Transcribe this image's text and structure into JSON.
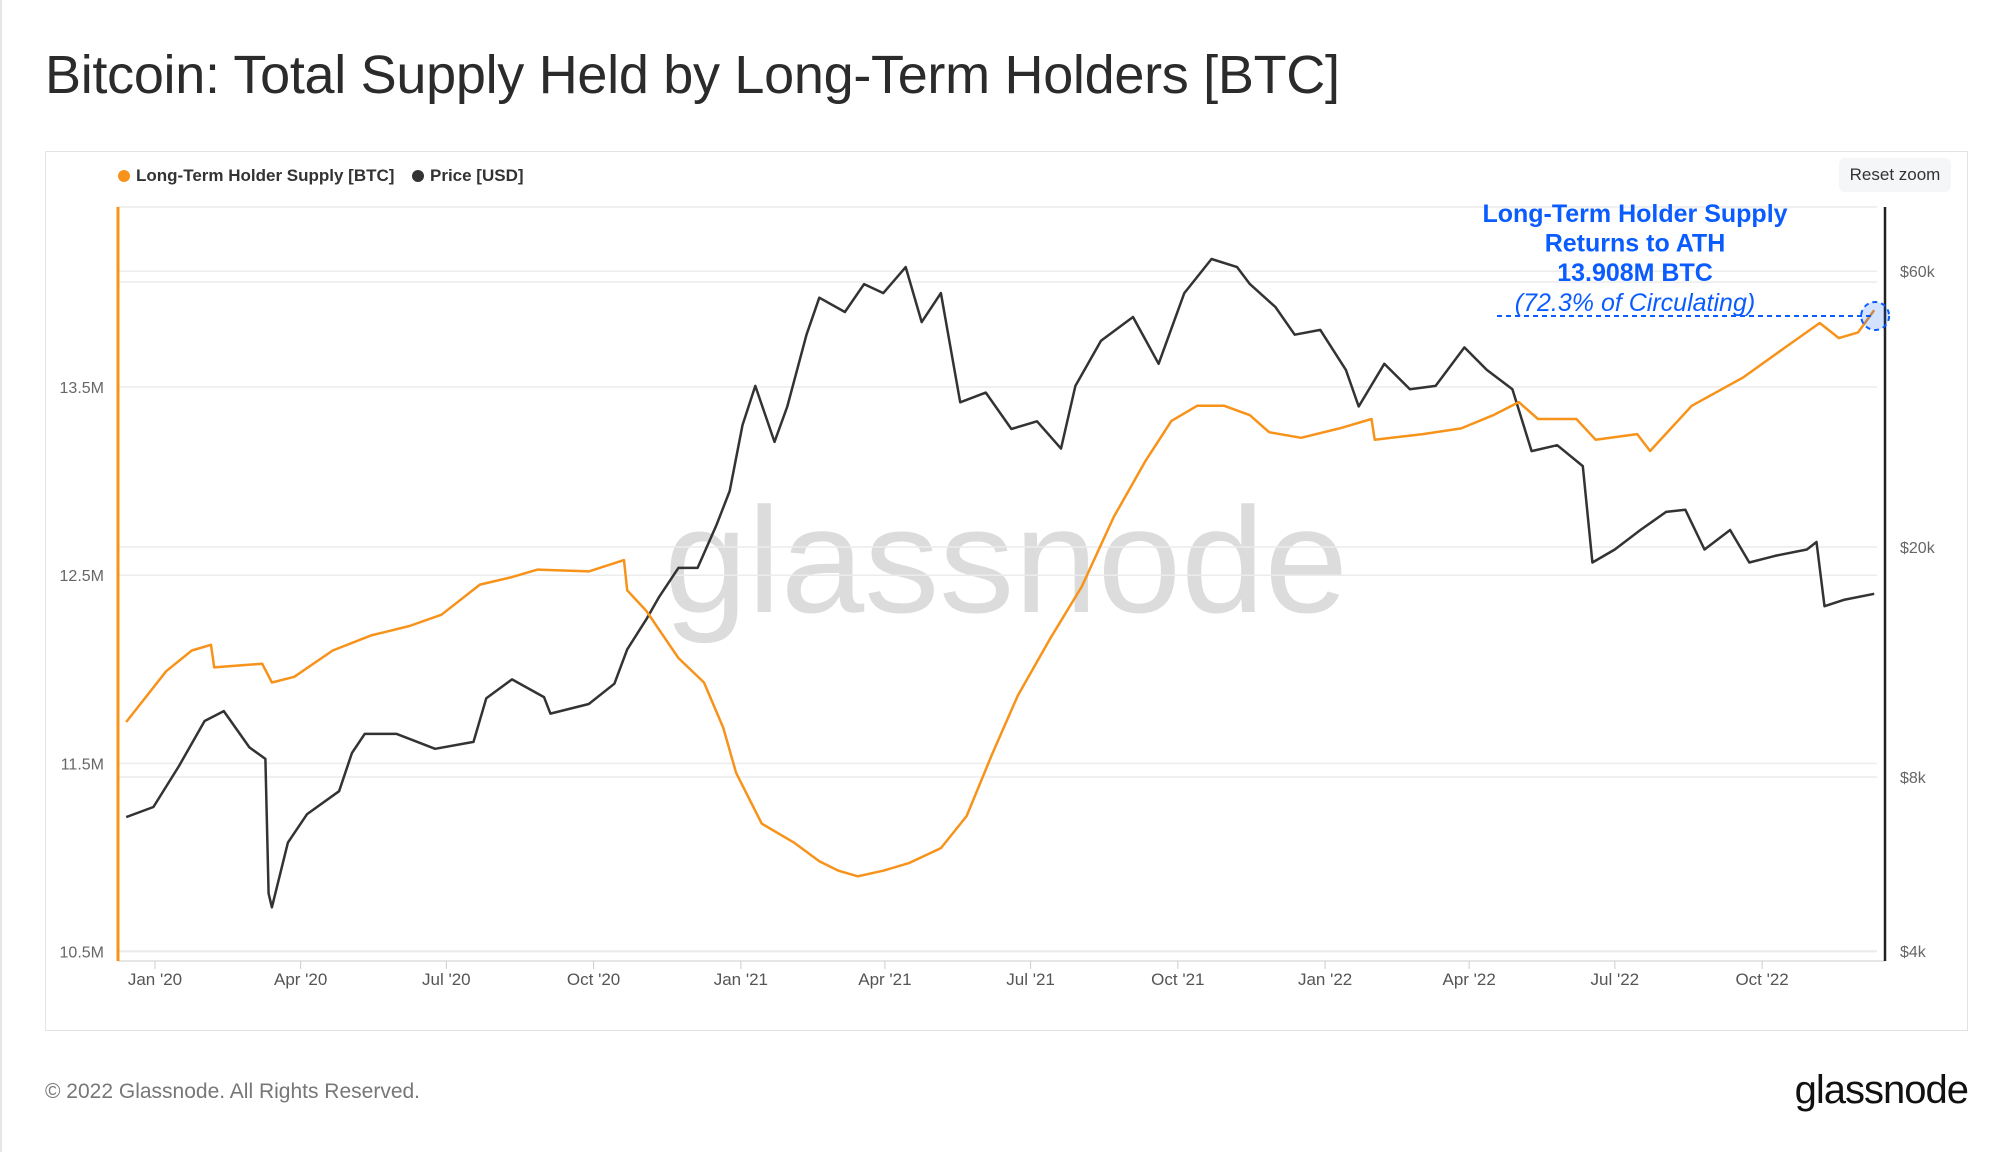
{
  "title": "Bitcoin: Total Supply Held by Long-Term Holders [BTC]",
  "reset_zoom_label": "Reset zoom",
  "footer": {
    "copyright": "© 2022 Glassnode. All Rights Reserved.",
    "logo": "glassnode"
  },
  "watermark": "glassnode",
  "chart_data": {
    "type": "line",
    "title": "Bitcoin: Total Supply Held by Long-Term Holders [BTC]",
    "legend": [
      "Long-Term Holder Supply [BTC]",
      "Price [USD]"
    ],
    "legend_placement": "top-left",
    "grid": true,
    "x_ticks": [
      "Jan '20",
      "Apr '20",
      "Jul '20",
      "Oct '20",
      "Jan '21",
      "Apr '21",
      "Jul '21",
      "Oct '21",
      "Jan '22",
      "Apr '22",
      "Jul '22",
      "Oct '22"
    ],
    "x_tick_dates": [
      "2020-01-01",
      "2020-04-01",
      "2020-07-01",
      "2020-10-01",
      "2021-01-01",
      "2021-04-01",
      "2021-07-01",
      "2021-10-01",
      "2022-01-01",
      "2022-04-01",
      "2022-07-01",
      "2022-10-01"
    ],
    "xlim": [
      "2019-12-10",
      "2022-12-12"
    ],
    "y_left": {
      "ticks": [
        10.5,
        11.5,
        12.5,
        13.5
      ],
      "tick_labels": [
        "10.5M",
        "11.5M",
        "12.5M",
        "13.5M"
      ],
      "unit": "M BTC",
      "range": [
        10.47,
        14.46
      ],
      "scale": "linear"
    },
    "y_right": {
      "ticks": [
        4000,
        8000,
        20000,
        60000
      ],
      "tick_labels": [
        "$4k",
        "$8k",
        "$20k",
        "$60k"
      ],
      "range": [
        3900,
        77300
      ],
      "scale": "log"
    },
    "colors": {
      "lth": "#f7931a",
      "price": "#333333",
      "annotation": "#0a5cff"
    },
    "annotation": {
      "lines": [
        "Long-Term Holder Supply",
        "Returns to ATH",
        "13.908M BTC"
      ],
      "subline": "(72.3% of Circulating)",
      "value": 13.908,
      "date": "2022-12-10"
    },
    "series": [
      {
        "name": "Long-Term Holder Supply [BTC]",
        "axis": "left",
        "points": [
          [
            "2019-12-14",
            11.72
          ],
          [
            "2020-01-08",
            11.99
          ],
          [
            "2020-01-24",
            12.1
          ],
          [
            "2020-02-05",
            12.13
          ],
          [
            "2020-02-07",
            12.01
          ],
          [
            "2020-03-08",
            12.03
          ],
          [
            "2020-03-14",
            11.93
          ],
          [
            "2020-03-28",
            11.96
          ],
          [
            "2020-04-21",
            12.1
          ],
          [
            "2020-05-15",
            12.18
          ],
          [
            "2020-06-08",
            12.23
          ],
          [
            "2020-06-28",
            12.29
          ],
          [
            "2020-07-22",
            12.45
          ],
          [
            "2020-08-11",
            12.49
          ],
          [
            "2020-08-27",
            12.53
          ],
          [
            "2020-09-28",
            12.52
          ],
          [
            "2020-10-20",
            12.58
          ],
          [
            "2020-10-22",
            12.42
          ],
          [
            "2020-11-03",
            12.31
          ],
          [
            "2020-11-23",
            12.06
          ],
          [
            "2020-12-09",
            11.93
          ],
          [
            "2020-12-21",
            11.69
          ],
          [
            "2020-12-29",
            11.45
          ],
          [
            "2021-01-14",
            11.18
          ],
          [
            "2021-02-03",
            11.08
          ],
          [
            "2021-02-19",
            10.98
          ],
          [
            "2021-03-03",
            10.93
          ],
          [
            "2021-03-15",
            10.9
          ],
          [
            "2021-03-31",
            10.93
          ],
          [
            "2021-04-16",
            10.97
          ],
          [
            "2021-05-06",
            11.05
          ],
          [
            "2021-05-22",
            11.22
          ],
          [
            "2021-06-07",
            11.55
          ],
          [
            "2021-06-23",
            11.86
          ],
          [
            "2021-07-13",
            12.16
          ],
          [
            "2021-08-02",
            12.44
          ],
          [
            "2021-08-22",
            12.81
          ],
          [
            "2021-09-11",
            13.11
          ],
          [
            "2021-09-27",
            13.32
          ],
          [
            "2021-10-13",
            13.4
          ],
          [
            "2021-10-30",
            13.4
          ],
          [
            "2021-11-15",
            13.35
          ],
          [
            "2021-11-27",
            13.26
          ],
          [
            "2021-12-17",
            13.23
          ],
          [
            "2022-01-10",
            13.28
          ],
          [
            "2022-01-30",
            13.33
          ],
          [
            "2022-02-01",
            13.22
          ],
          [
            "2022-03-03",
            13.25
          ],
          [
            "2022-03-27",
            13.28
          ],
          [
            "2022-04-16",
            13.35
          ],
          [
            "2022-05-02",
            13.42
          ],
          [
            "2022-05-14",
            13.33
          ],
          [
            "2022-06-07",
            13.33
          ],
          [
            "2022-06-19",
            13.22
          ],
          [
            "2022-07-15",
            13.25
          ],
          [
            "2022-07-23",
            13.16
          ],
          [
            "2022-08-18",
            13.4
          ],
          [
            "2022-09-19",
            13.55
          ],
          [
            "2022-10-17",
            13.72
          ],
          [
            "2022-11-06",
            13.84
          ],
          [
            "2022-11-18",
            13.76
          ],
          [
            "2022-11-30",
            13.79
          ],
          [
            "2022-12-10",
            13.908
          ]
        ]
      },
      {
        "name": "Price [USD]",
        "axis": "right",
        "points": [
          [
            "2019-12-14",
            6820
          ],
          [
            "2019-12-31",
            7100
          ],
          [
            "2020-01-16",
            8360
          ],
          [
            "2020-02-01",
            10000
          ],
          [
            "2020-02-13",
            10400
          ],
          [
            "2020-02-29",
            9000
          ],
          [
            "2020-03-10",
            8600
          ],
          [
            "2020-03-12",
            5030
          ],
          [
            "2020-03-14",
            4760
          ],
          [
            "2020-03-24",
            6160
          ],
          [
            "2020-04-05",
            6900
          ],
          [
            "2020-04-25",
            7560
          ],
          [
            "2020-05-03",
            8800
          ],
          [
            "2020-05-11",
            9500
          ],
          [
            "2020-05-31",
            9500
          ],
          [
            "2020-06-24",
            8950
          ],
          [
            "2020-07-18",
            9200
          ],
          [
            "2020-07-26",
            10950
          ],
          [
            "2020-08-11",
            11800
          ],
          [
            "2020-08-31",
            11000
          ],
          [
            "2020-09-04",
            10300
          ],
          [
            "2020-09-28",
            10700
          ],
          [
            "2020-10-14",
            11600
          ],
          [
            "2020-10-22",
            13300
          ],
          [
            "2020-11-03",
            15000
          ],
          [
            "2020-11-11",
            16400
          ],
          [
            "2020-11-23",
            18400
          ],
          [
            "2020-12-05",
            18400
          ],
          [
            "2020-12-17",
            21900
          ],
          [
            "2020-12-25",
            25000
          ],
          [
            "2021-01-02",
            32500
          ],
          [
            "2021-01-10",
            38000
          ],
          [
            "2021-01-22",
            30400
          ],
          [
            "2021-01-30",
            35000
          ],
          [
            "2021-02-11",
            46600
          ],
          [
            "2021-02-19",
            54000
          ],
          [
            "2021-03-07",
            51000
          ],
          [
            "2021-03-19",
            57000
          ],
          [
            "2021-03-31",
            55000
          ],
          [
            "2021-04-14",
            61000
          ],
          [
            "2021-04-24",
            49000
          ],
          [
            "2021-05-06",
            55000
          ],
          [
            "2021-05-18",
            35600
          ],
          [
            "2021-06-03",
            37000
          ],
          [
            "2021-06-19",
            32000
          ],
          [
            "2021-07-05",
            33000
          ],
          [
            "2021-07-20",
            29600
          ],
          [
            "2021-07-29",
            38000
          ],
          [
            "2021-08-14",
            45500
          ],
          [
            "2021-09-03",
            50000
          ],
          [
            "2021-09-19",
            41500
          ],
          [
            "2021-10-05",
            55000
          ],
          [
            "2021-10-22",
            63000
          ],
          [
            "2021-11-07",
            61000
          ],
          [
            "2021-11-15",
            57000
          ],
          [
            "2021-12-01",
            52000
          ],
          [
            "2021-12-13",
            46600
          ],
          [
            "2021-12-29",
            47500
          ],
          [
            "2022-01-14",
            40500
          ],
          [
            "2022-01-22",
            35000
          ],
          [
            "2022-02-07",
            41500
          ],
          [
            "2022-02-23",
            37500
          ],
          [
            "2022-03-11",
            38000
          ],
          [
            "2022-03-29",
            44300
          ],
          [
            "2022-04-12",
            40500
          ],
          [
            "2022-04-28",
            37500
          ],
          [
            "2022-05-10",
            29300
          ],
          [
            "2022-05-26",
            30000
          ],
          [
            "2022-06-11",
            27600
          ],
          [
            "2022-06-17",
            18800
          ],
          [
            "2022-07-01",
            19800
          ],
          [
            "2022-07-17",
            21400
          ],
          [
            "2022-08-02",
            23000
          ],
          [
            "2022-08-14",
            23200
          ],
          [
            "2022-08-26",
            19800
          ],
          [
            "2022-09-11",
            21400
          ],
          [
            "2022-09-23",
            18800
          ],
          [
            "2022-10-09",
            19300
          ],
          [
            "2022-10-29",
            19800
          ],
          [
            "2022-11-04",
            20400
          ],
          [
            "2022-11-09",
            15800
          ],
          [
            "2022-11-21",
            16200
          ],
          [
            "2022-12-10",
            16600
          ]
        ]
      }
    ]
  }
}
